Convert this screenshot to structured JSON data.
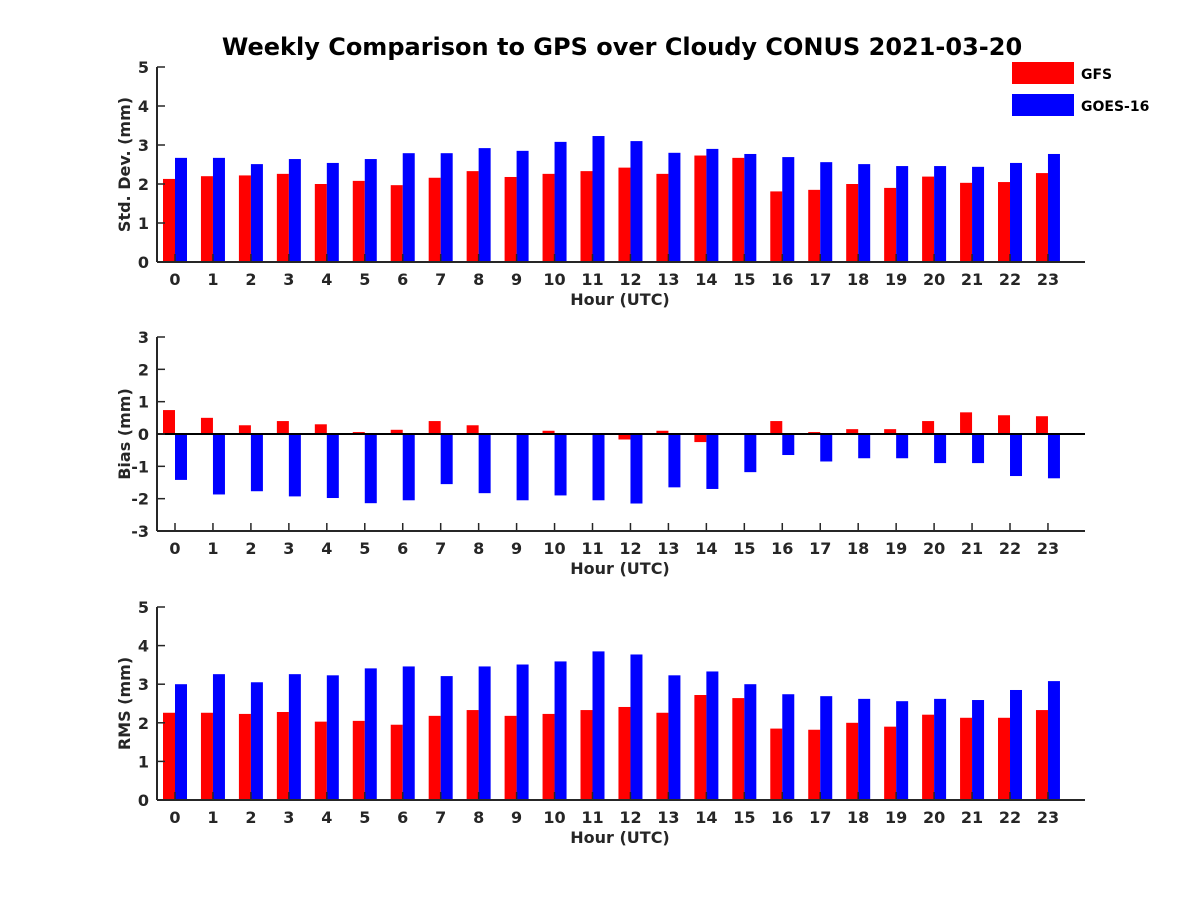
{
  "title": "Weekly Comparison to GPS over Cloudy CONUS 2021-03-20",
  "legend": {
    "placement": "top-right",
    "entries": [
      {
        "name": "GFS",
        "color": "#ff0000"
      },
      {
        "name": "GOES-16",
        "color": "#0000ff"
      }
    ]
  },
  "colors": {
    "GFS": "#ff0000",
    "GOES-16": "#0000ff",
    "axis": "#262626"
  },
  "chart_data": [
    {
      "type": "bar",
      "xlabel": "Hour (UTC)",
      "ylabel": "Std. Dev. (mm)",
      "ylim": [
        0,
        5
      ],
      "yticks": [
        0,
        1,
        2,
        3,
        4,
        5
      ],
      "categories": [
        "0",
        "1",
        "2",
        "3",
        "4",
        "5",
        "6",
        "7",
        "8",
        "9",
        "10",
        "11",
        "12",
        "13",
        "14",
        "15",
        "16",
        "17",
        "18",
        "19",
        "20",
        "21",
        "22",
        "23"
      ],
      "series": [
        {
          "name": "GFS",
          "values": [
            2.13,
            2.2,
            2.22,
            2.26,
            2.0,
            2.08,
            1.97,
            2.16,
            2.33,
            2.18,
            2.26,
            2.33,
            2.42,
            2.26,
            2.73,
            2.67,
            1.81,
            1.85,
            2.0,
            1.9,
            2.19,
            2.03,
            2.05,
            2.28
          ]
        },
        {
          "name": "GOES-16",
          "values": [
            2.67,
            2.67,
            2.51,
            2.64,
            2.54,
            2.64,
            2.79,
            2.79,
            2.92,
            2.85,
            3.08,
            3.23,
            3.1,
            2.8,
            2.9,
            2.77,
            2.69,
            2.56,
            2.51,
            2.46,
            2.46,
            2.44,
            2.54,
            2.77
          ]
        }
      ]
    },
    {
      "type": "bar",
      "xlabel": "Hour (UTC)",
      "ylabel": "Bias (mm)",
      "ylim": [
        -3,
        3
      ],
      "yticks": [
        -3,
        -2,
        -1,
        0,
        1,
        2,
        3
      ],
      "categories": [
        "0",
        "1",
        "2",
        "3",
        "4",
        "5",
        "6",
        "7",
        "8",
        "9",
        "10",
        "11",
        "12",
        "13",
        "14",
        "15",
        "16",
        "17",
        "18",
        "19",
        "20",
        "21",
        "22",
        "23"
      ],
      "series": [
        {
          "name": "GFS",
          "values": [
            0.74,
            0.5,
            0.27,
            0.4,
            0.3,
            0.06,
            0.13,
            0.4,
            0.27,
            0.0,
            0.1,
            0.03,
            -0.17,
            0.1,
            -0.25,
            -0.03,
            0.4,
            0.06,
            0.15,
            0.15,
            0.4,
            0.67,
            0.58,
            0.55
          ]
        },
        {
          "name": "GOES-16",
          "values": [
            -1.42,
            -1.87,
            -1.77,
            -1.93,
            -1.98,
            -2.14,
            -2.05,
            -1.55,
            -1.83,
            -2.05,
            -1.9,
            -2.05,
            -2.15,
            -1.65,
            -1.7,
            -1.18,
            -0.65,
            -0.85,
            -0.75,
            -0.75,
            -0.9,
            -0.9,
            -1.3,
            -1.37
          ]
        }
      ]
    },
    {
      "type": "bar",
      "xlabel": "Hour (UTC)",
      "ylabel": "RMS (mm)",
      "ylim": [
        0,
        5
      ],
      "yticks": [
        0,
        1,
        2,
        3,
        4,
        5
      ],
      "categories": [
        "0",
        "1",
        "2",
        "3",
        "4",
        "5",
        "6",
        "7",
        "8",
        "9",
        "10",
        "11",
        "12",
        "13",
        "14",
        "15",
        "16",
        "17",
        "18",
        "19",
        "20",
        "21",
        "22",
        "23"
      ],
      "series": [
        {
          "name": "GFS",
          "values": [
            2.26,
            2.26,
            2.23,
            2.28,
            2.03,
            2.05,
            1.95,
            2.18,
            2.33,
            2.18,
            2.23,
            2.33,
            2.41,
            2.26,
            2.72,
            2.64,
            1.85,
            1.82,
            2.0,
            1.9,
            2.21,
            2.13,
            2.13,
            2.33
          ]
        },
        {
          "name": "GOES-16",
          "values": [
            3.0,
            3.26,
            3.05,
            3.26,
            3.23,
            3.41,
            3.46,
            3.21,
            3.46,
            3.51,
            3.59,
            3.85,
            3.77,
            3.23,
            3.33,
            3.0,
            2.74,
            2.69,
            2.62,
            2.56,
            2.62,
            2.59,
            2.85,
            3.08
          ]
        }
      ]
    }
  ]
}
